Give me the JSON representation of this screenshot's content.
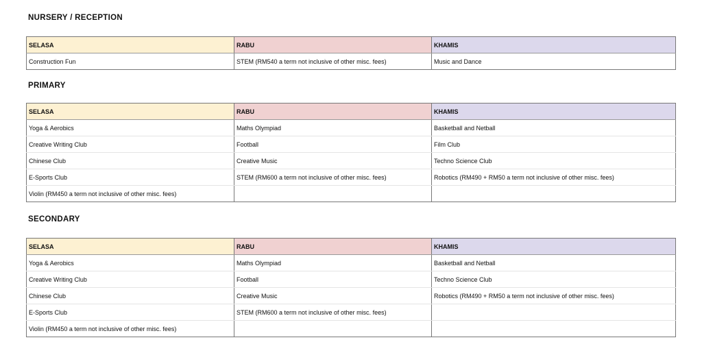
{
  "colors": {
    "selasa": "#fdf1d2",
    "rabu": "#f0d1d1",
    "khamis": "#dcd8ec"
  },
  "sections": [
    {
      "title": "NURSERY / RECEPTION",
      "headers": [
        "SELASA",
        "RABU",
        "KHAMIS"
      ],
      "rows": [
        [
          "Construction Fun",
          "STEM (RM540 a term not inclusive of other misc. fees)",
          "Music and Dance"
        ]
      ]
    },
    {
      "title": "PRIMARY",
      "headers": [
        "SELASA",
        "RABU",
        "KHAMIS"
      ],
      "rows": [
        [
          "Yoga & Aerobics",
          "Maths Olympiad",
          "Basketball and Netball"
        ],
        [
          "Creative Writing Club",
          "Football",
          "Film Club"
        ],
        [
          "Chinese Club",
          "Creative Music",
          "Techno Science Club"
        ],
        [
          "E-Sports Club",
          "STEM (RM600 a term not inclusive of other misc. fees)",
          "Robotics (RM490 + RM50 a term not inclusive of other misc. fees)"
        ],
        [
          "Violin (RM450 a term not inclusive of other misc. fees)",
          "",
          ""
        ]
      ]
    },
    {
      "title": "SECONDARY",
      "headers": [
        "SELASA",
        "RABU",
        "KHAMIS"
      ],
      "rows": [
        [
          "Yoga & Aerobics",
          "Maths Olympiad",
          "Basketball and Netball"
        ],
        [
          "Creative Writing Club",
          "Football",
          "Techno Science Club"
        ],
        [
          "Chinese Club",
          "Creative Music",
          "Robotics (RM490 + RM50 a term not inclusive of other misc. fees)"
        ],
        [
          "E-Sports Club",
          "STEM (RM600 a term not inclusive of other misc. fees)",
          ""
        ],
        [
          "Violin (RM450 a term not inclusive of other misc. fees)",
          "",
          ""
        ]
      ]
    }
  ]
}
